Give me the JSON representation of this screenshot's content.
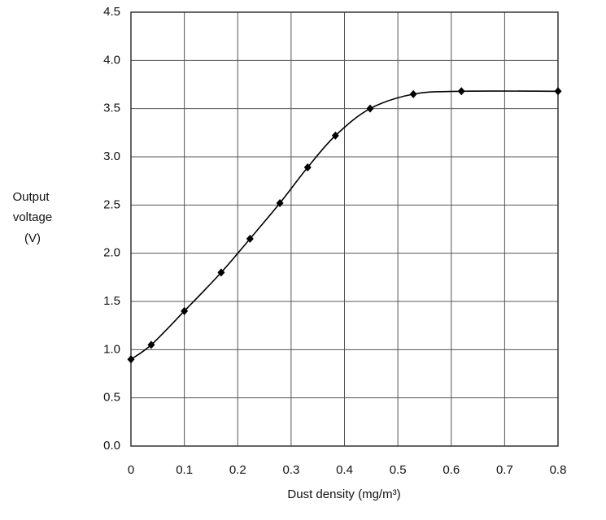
{
  "chart_data": {
    "type": "line",
    "x_label": "Dust density (mg/m³)",
    "y_label": [
      "Output",
      "voltage",
      "(V)"
    ],
    "series": [
      {
        "color": "#000000",
        "x": [
          0,
          0.038,
          0.1,
          0.169,
          0.223,
          0.279,
          0.331,
          0.383,
          0.448,
          0.529,
          0.619,
          0.8
        ],
        "values": [
          0.9,
          1.05,
          1.4,
          1.8,
          2.15,
          2.52,
          2.89,
          3.22,
          3.5,
          3.65,
          3.68,
          3.68
        ]
      }
    ],
    "xlim": [
      0,
      0.8
    ],
    "xticks": [
      0,
      0.1,
      0.2,
      0.3,
      0.4,
      0.5,
      0.6,
      0.7,
      0.8
    ],
    "ylim": [
      0,
      4.5
    ],
    "yticks": [
      {
        "value": 0,
        "label": "0.0"
      },
      {
        "value": 0.5,
        "label": "0.5"
      },
      {
        "value": 1,
        "label": "1.0"
      },
      {
        "value": 1.5,
        "label": "1.5"
      },
      {
        "value": 2,
        "label": "2.0"
      },
      {
        "value": 2.5,
        "label": "2.5"
      },
      {
        "value": 3,
        "label": "3.0"
      },
      {
        "value": 3.5,
        "label": "3.5"
      },
      {
        "value": 4,
        "label": "4.0"
      },
      {
        "value": 4.5,
        "label": "4.5"
      }
    ],
    "grid": true
  }
}
